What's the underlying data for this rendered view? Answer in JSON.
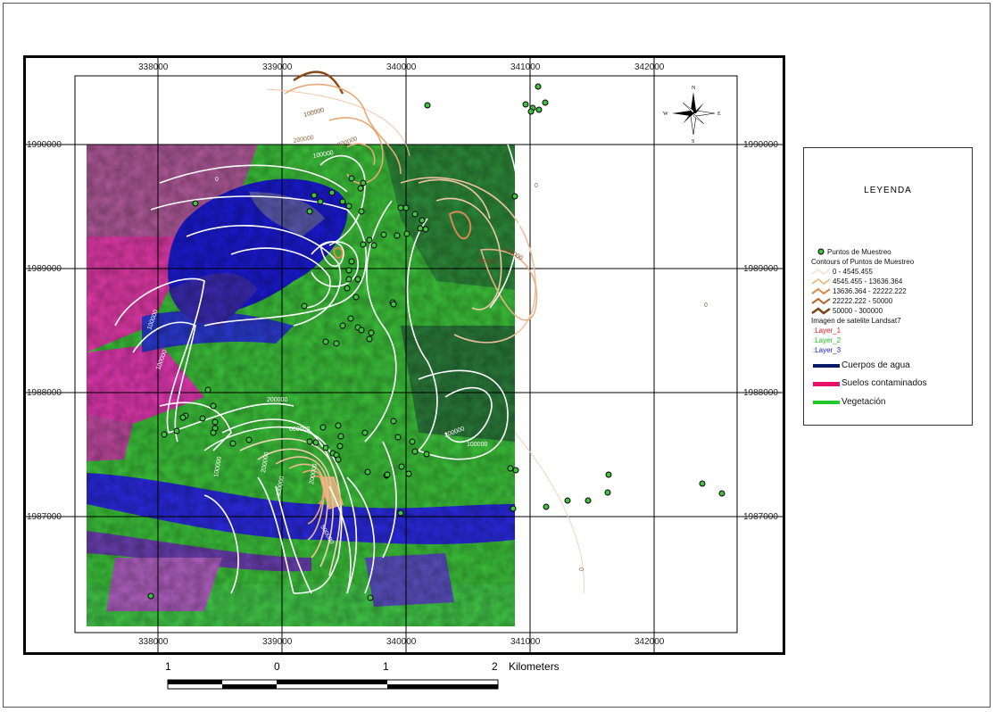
{
  "axes": {
    "x_ticks": [
      "338000",
      "339000",
      "340000",
      "341000",
      "342000"
    ],
    "y_ticks": [
      "1990000",
      "1989000",
      "1988000",
      "1987000"
    ]
  },
  "north_arrow": {
    "n": "N",
    "s": "S",
    "e": "E",
    "w": "W",
    "icon": "compass-rose-icon"
  },
  "contour_labels": [
    "100000",
    "200000",
    "200000",
    "100000",
    "300000",
    "200000",
    "0",
    "100000",
    "100000",
    "200000",
    "100000",
    "200000",
    "600000",
    "200000",
    "100000",
    "400000",
    "200000",
    "500000",
    "0",
    "0",
    "0"
  ],
  "legend": {
    "title": "LEYENDA",
    "points_label": "Puntos de Muestreo",
    "contours_title": "Contours of Puntos de Muestreo",
    "classes": [
      {
        "label": "0 - 4545.455",
        "color": "#f2d3b8"
      },
      {
        "label": "4545.455 - 13636.364",
        "color": "#e8b27a"
      },
      {
        "label": "13636.364 - 22222.222",
        "color": "#d9894a"
      },
      {
        "label": "22222.222 - 50000",
        "color": "#b6652a"
      },
      {
        "label": "50000 - 300000",
        "color": "#7a4518"
      }
    ],
    "satellite_title": "Imagen de satelite Landsat7",
    "layers": [
      {
        "label": ":Layer_1",
        "color": "#e02020"
      },
      {
        "label": ":Layer_2",
        "color": "#22c022"
      },
      {
        "label": ":Layer_3",
        "color": "#2020d0"
      }
    ],
    "features": [
      {
        "label": "Cuerpos de agua",
        "color": "#0a1a6a"
      },
      {
        "label": "Suelos contaminados",
        "color": "#e8106a"
      },
      {
        "label": "Vegetación",
        "color": "#22c82a"
      }
    ]
  },
  "scale_bar": {
    "labels": [
      "1",
      "0",
      "1",
      "2"
    ],
    "unit": "Kilometers"
  }
}
